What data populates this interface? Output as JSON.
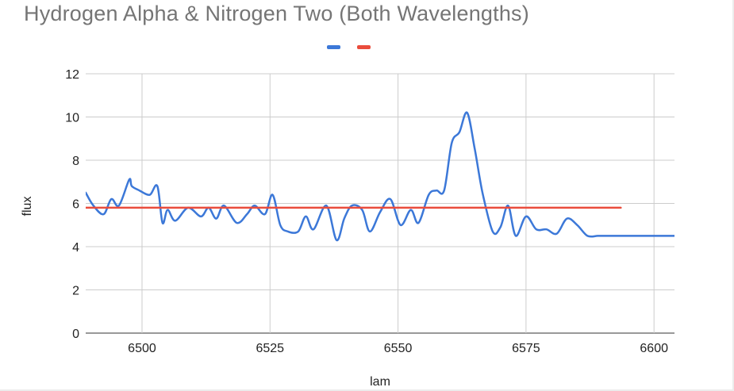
{
  "chart_data": {
    "type": "line",
    "title": "Hydrogen Alpha & Nitrogen Two (Both Wavelengths)",
    "xlabel": "lam",
    "ylabel": "flux",
    "xlim": [
      6489,
      6604
    ],
    "ylim": [
      0,
      12
    ],
    "xticks": [
      6500,
      6525,
      6550,
      6575,
      6600
    ],
    "yticks": [
      0,
      2,
      4,
      6,
      8,
      10,
      12
    ],
    "grid": true,
    "legend_position": "top",
    "series": [
      {
        "color": "#3c78d8",
        "x": [
          6489,
          6490.5,
          6492.5,
          6494,
          6495.5,
          6497.5,
          6498,
          6499.5,
          6501.5,
          6503,
          6504,
          6505,
          6506.5,
          6509,
          6511.5,
          6513,
          6514.5,
          6516,
          6518.5,
          6520.5,
          6522,
          6524,
          6525.5,
          6527,
          6528.5,
          6530.5,
          6532,
          6533.5,
          6536,
          6538,
          6539.5,
          6541,
          6543,
          6544.5,
          6546.5,
          6548.5,
          6550.5,
          6552.5,
          6554,
          6556,
          6557.5,
          6559,
          6560.5,
          6562,
          6563.5,
          6565,
          6566.5,
          6568.5,
          6570,
          6571.5,
          6573,
          6575,
          6577,
          6579,
          6581,
          6583,
          6585,
          6587,
          6589,
          6590.5,
          6592,
          6593.5,
          6595,
          6597,
          6599.5,
          6601,
          6602.5,
          6604
        ],
        "values": [
          6.5,
          5.9,
          5.5,
          6.2,
          5.9,
          7.1,
          6.8,
          6.6,
          6.4,
          6.8,
          5.1,
          5.7,
          5.2,
          5.8,
          5.4,
          5.8,
          5.3,
          5.9,
          5.1,
          5.5,
          5.9,
          5.5,
          6.4,
          5.0,
          4.7,
          4.7,
          5.4,
          4.8,
          5.9,
          4.3,
          5.3,
          5.9,
          5.7,
          4.7,
          5.6,
          6.2,
          5.0,
          5.7,
          5.1,
          6.4,
          6.6,
          6.6,
          8.8,
          9.3,
          10.2,
          8.5,
          6.5,
          4.7,
          4.9,
          5.9,
          4.5,
          5.4,
          4.8,
          4.8,
          4.6,
          5.3,
          5.0,
          4.5,
          4.5,
          4.5,
          4.5,
          4.5,
          4.5,
          4.5,
          4.5,
          4.5,
          4.5,
          4.5
        ]
      },
      {
        "color": "#ea4c3c",
        "x": [
          6489,
          6593.5
        ],
        "values": [
          5.8,
          5.8
        ]
      }
    ]
  }
}
